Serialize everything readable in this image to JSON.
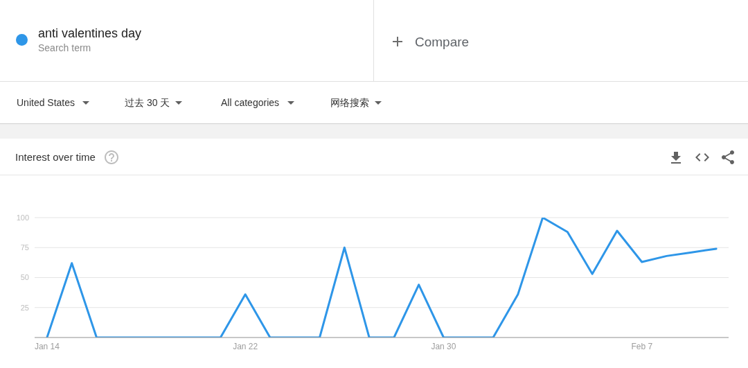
{
  "chart_data": {
    "type": "line",
    "title": "Interest over time",
    "categories": [
      "Jan 14",
      null,
      null,
      null,
      null,
      null,
      null,
      null,
      "Jan 22",
      null,
      null,
      null,
      null,
      null,
      null,
      null,
      "Jan 30",
      null,
      null,
      null,
      null,
      null,
      null,
      null,
      "Feb 7",
      null,
      null,
      null
    ],
    "series": [
      {
        "name": "anti valentines day",
        "color": "#2e96e8",
        "values": [
          0,
          62,
          0,
          0,
          0,
          0,
          0,
          0,
          36,
          0,
          0,
          0,
          75,
          0,
          0,
          44,
          0,
          0,
          0,
          36,
          100,
          88,
          53,
          89,
          63,
          68,
          71,
          74
        ]
      }
    ],
    "ylim": [
      0,
      100
    ],
    "yticks": [
      25,
      50,
      75,
      100
    ],
    "grid": "y",
    "legend": "top left",
    "marker": "none",
    "line_style": "solid",
    "annotations": [
      "Search term",
      "Compare",
      "United States",
      "过去 30 天",
      "All categories",
      "网络搜索"
    ]
  }
}
